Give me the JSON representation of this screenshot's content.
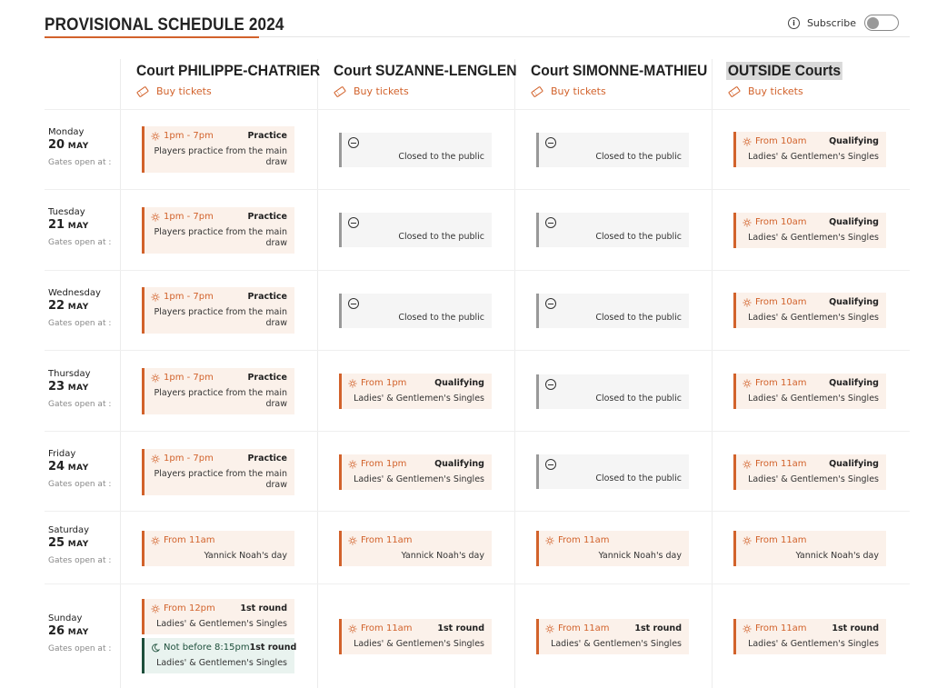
{
  "header": {
    "title": "PROVISIONAL SCHEDULE 2024",
    "subscribe_label": "Subscribe",
    "subscribe_on": false
  },
  "buy_label": "Buy tickets",
  "courts": [
    {
      "name": "Court PHILIPPE-CHATRIER"
    },
    {
      "name": "Court SUZANNE-LENGLEN"
    },
    {
      "name": "Court SIMONNE-MATHIEU"
    },
    {
      "name": "OUTSIDE Courts"
    }
  ],
  "gates_label": "Gates open at :",
  "days": [
    {
      "weekday": "Monday",
      "day": "20",
      "month": "MAY",
      "cells": [
        [
          {
            "kind": "open",
            "time": "1pm - 7pm",
            "tag": "Practice",
            "desc": "Players practice from the main draw"
          }
        ],
        [
          {
            "kind": "closed",
            "desc": "Closed to the public"
          }
        ],
        [
          {
            "kind": "closed",
            "desc": "Closed to the public"
          }
        ],
        [
          {
            "kind": "open",
            "time": "From 10am",
            "tag": "Qualifying",
            "desc": "Ladies' & Gentlemen's Singles"
          }
        ]
      ]
    },
    {
      "weekday": "Tuesday",
      "day": "21",
      "month": "MAY",
      "cells": [
        [
          {
            "kind": "open",
            "time": "1pm - 7pm",
            "tag": "Practice",
            "desc": "Players practice from the main draw"
          }
        ],
        [
          {
            "kind": "closed",
            "desc": "Closed to the public"
          }
        ],
        [
          {
            "kind": "closed",
            "desc": "Closed to the public"
          }
        ],
        [
          {
            "kind": "open",
            "time": "From 10am",
            "tag": "Qualifying",
            "desc": "Ladies' & Gentlemen's Singles"
          }
        ]
      ]
    },
    {
      "weekday": "Wednesday",
      "day": "22",
      "month": "MAY",
      "cells": [
        [
          {
            "kind": "open",
            "time": "1pm - 7pm",
            "tag": "Practice",
            "desc": "Players practice from the main draw"
          }
        ],
        [
          {
            "kind": "closed",
            "desc": "Closed to the public"
          }
        ],
        [
          {
            "kind": "closed",
            "desc": "Closed to the public"
          }
        ],
        [
          {
            "kind": "open",
            "time": "From 10am",
            "tag": "Qualifying",
            "desc": "Ladies' & Gentlemen's Singles"
          }
        ]
      ]
    },
    {
      "weekday": "Thursday",
      "day": "23",
      "month": "MAY",
      "cells": [
        [
          {
            "kind": "open",
            "time": "1pm - 7pm",
            "tag": "Practice",
            "desc": "Players practice from the main draw"
          }
        ],
        [
          {
            "kind": "open",
            "time": "From 1pm",
            "tag": "Qualifying",
            "desc": "Ladies' & Gentlemen's Singles"
          }
        ],
        [
          {
            "kind": "closed",
            "desc": "Closed to the public"
          }
        ],
        [
          {
            "kind": "open",
            "time": "From 11am",
            "tag": "Qualifying",
            "desc": "Ladies' & Gentlemen's Singles"
          }
        ]
      ]
    },
    {
      "weekday": "Friday",
      "day": "24",
      "month": "MAY",
      "cells": [
        [
          {
            "kind": "open",
            "time": "1pm - 7pm",
            "tag": "Practice",
            "desc": "Players practice from the main draw"
          }
        ],
        [
          {
            "kind": "open",
            "time": "From 1pm",
            "tag": "Qualifying",
            "desc": "Ladies' & Gentlemen's Singles"
          }
        ],
        [
          {
            "kind": "closed",
            "desc": "Closed to the public"
          }
        ],
        [
          {
            "kind": "open",
            "time": "From 11am",
            "tag": "Qualifying",
            "desc": "Ladies' & Gentlemen's Singles"
          }
        ]
      ]
    },
    {
      "weekday": "Saturday",
      "day": "25",
      "month": "MAY",
      "cells": [
        [
          {
            "kind": "open",
            "time": "From 11am",
            "tag": "",
            "desc": "Yannick Noah's day"
          }
        ],
        [
          {
            "kind": "open",
            "time": "From 11am",
            "tag": "",
            "desc": "Yannick Noah's day"
          }
        ],
        [
          {
            "kind": "open",
            "time": "From 11am",
            "tag": "",
            "desc": "Yannick Noah's day"
          }
        ],
        [
          {
            "kind": "open",
            "time": "From 11am",
            "tag": "",
            "desc": "Yannick Noah's day"
          }
        ]
      ]
    },
    {
      "weekday": "Sunday",
      "day": "26",
      "month": "MAY",
      "cells": [
        [
          {
            "kind": "open",
            "time": "From 12pm",
            "tag": "1st round",
            "desc": "Ladies' & Gentlemen's Singles"
          },
          {
            "kind": "night",
            "time": "Not before 8:15pm",
            "tag": "1st round",
            "desc": "Ladies' & Gentlemen's Singles"
          }
        ],
        [
          {
            "kind": "open",
            "time": "From 11am",
            "tag": "1st round",
            "desc": "Ladies' & Gentlemen's Singles"
          }
        ],
        [
          {
            "kind": "open",
            "time": "From 11am",
            "tag": "1st round",
            "desc": "Ladies' & Gentlemen's Singles"
          }
        ],
        [
          {
            "kind": "open",
            "time": "From 11am",
            "tag": "1st round",
            "desc": "Ladies' & Gentlemen's Singles"
          }
        ]
      ]
    }
  ],
  "colors": {
    "accent": "#d2622b",
    "closed": "#999999",
    "night": "#1d4f3b"
  },
  "icons": {
    "time": "sun-icon",
    "night": "moon-icon",
    "closed": "no-entry-icon",
    "ticket": "ticket-icon",
    "info": "info-icon"
  }
}
